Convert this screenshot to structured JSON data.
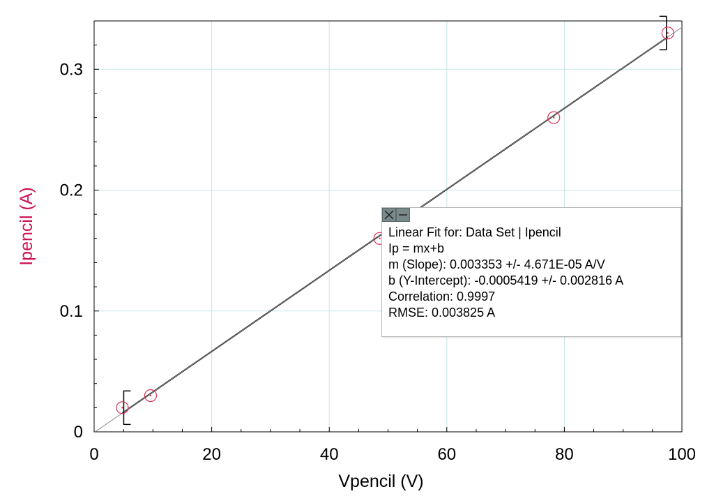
{
  "chart_data": {
    "type": "scatter",
    "xlabel": "Vpencil (V)",
    "ylabel": "Ipencil (A)",
    "xlim": [
      0,
      100
    ],
    "ylim": [
      0,
      0.34
    ],
    "x_ticks": [
      "0",
      "20",
      "40",
      "60",
      "80",
      "100"
    ],
    "y_ticks": [
      "0",
      "0.1",
      "0.2",
      "0.3"
    ],
    "grid": true,
    "series": [
      {
        "x": [
          4.8,
          9.6,
          48.6,
          78.2,
          97.6
        ],
        "y": [
          0.02,
          0.03,
          0.16,
          0.26,
          0.33
        ]
      }
    ],
    "fit": {
      "m": 0.003353,
      "b": -0.0005419,
      "x_range": [
        4.8,
        97.6
      ]
    },
    "colors": {
      "ylabel": "#cc1155",
      "marker": "#dd3355",
      "fit_line": "#000000",
      "grid": "#c8e4e8"
    }
  },
  "fit_box": {
    "lines": [
      "Linear Fit for: Data Set | Ipencil",
      "Ip = mx+b",
      "m (Slope): 0.003353 +/- 4.671E-05 A/V",
      "b (Y-Intercept): -0.0005419 +/- 0.002816 A",
      "Correlation: 0.9997",
      "RMSE: 0.003825 A"
    ],
    "close_icon": "close-icon",
    "minimize_icon": "minimize-icon"
  }
}
